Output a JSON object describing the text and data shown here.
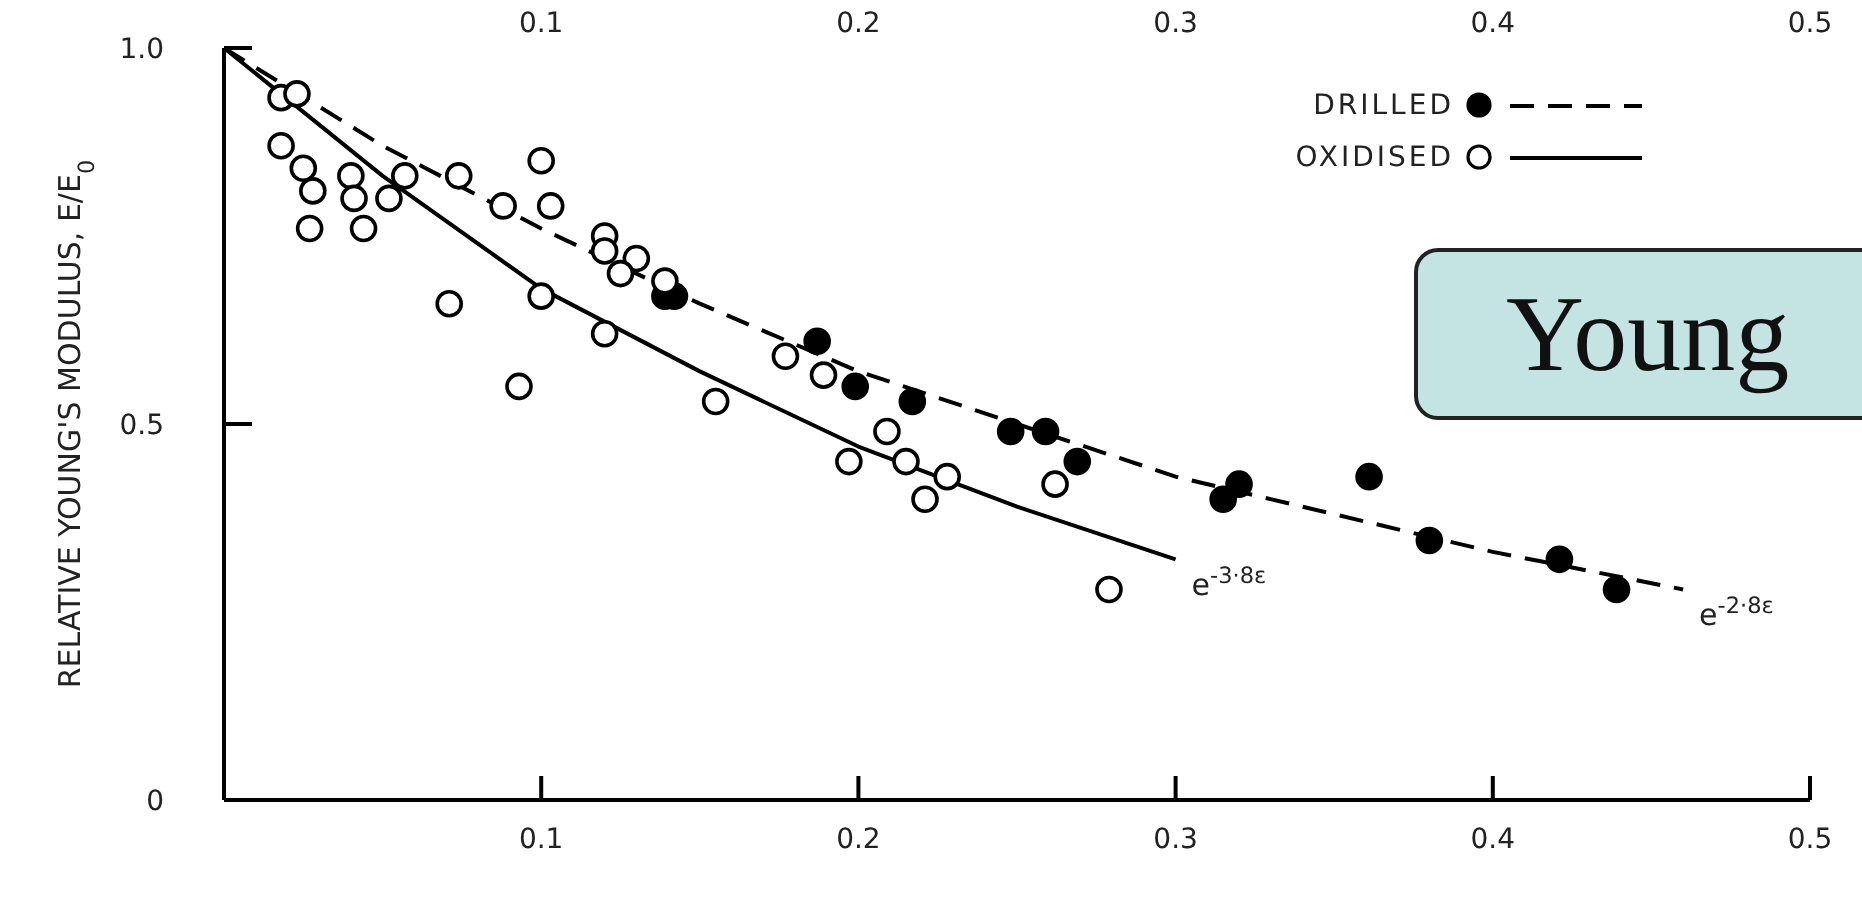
{
  "chart_data": {
    "type": "scatter",
    "ylabel": "RELATIVE YOUNG'S MODULUS, E/E$_{0}$",
    "xlim": [
      0,
      0.5
    ],
    "xticks": [
      0.1,
      0.2,
      0.3,
      0.4,
      0.5
    ],
    "x2lim": [
      0,
      0.5
    ],
    "x2ticks": [
      0.1,
      0.2,
      0.3,
      0.4,
      0.5
    ],
    "ylim": [
      0,
      1
    ],
    "yticks": [
      0,
      0.5,
      {
        "value": 1,
        "label": "1.0"
      }
    ],
    "grid": false,
    "legend": "top right",
    "marker": "circle",
    "series": [
      {
        "name": "DRILLED",
        "color": "#000000",
        "x": [
          0.139,
          0.142,
          0.187,
          0.199,
          0.217,
          0.248,
          0.259,
          0.269,
          0.315,
          0.32,
          0.361,
          0.38,
          0.421,
          0.439
        ],
        "values": [
          0.67,
          0.67,
          0.61,
          0.55,
          0.53,
          0.49,
          0.49,
          0.45,
          0.4,
          0.42,
          0.43,
          0.345,
          0.32,
          0.28
        ]
      },
      {
        "name": "OXIDISED",
        "color": "#ffffff",
        "x": [
          0.018,
          0.023,
          0.018,
          0.025,
          0.028,
          0.027,
          0.04,
          0.041,
          0.044,
          0.052,
          0.057,
          0.074,
          0.071,
          0.088,
          0.1,
          0.103,
          0.1,
          0.093,
          0.12,
          0.12,
          0.13,
          0.125,
          0.139,
          0.12,
          0.155,
          0.177,
          0.189,
          0.209,
          0.197,
          0.215,
          0.228,
          0.221,
          0.262,
          0.279
        ],
        "values": [
          0.934,
          0.939,
          0.87,
          0.84,
          0.81,
          0.76,
          0.83,
          0.8,
          0.76,
          0.8,
          0.83,
          0.83,
          0.66,
          0.79,
          0.85,
          0.79,
          0.67,
          0.55,
          0.75,
          0.73,
          0.72,
          0.7,
          0.69,
          0.62,
          0.53,
          0.59,
          0.565,
          0.49,
          0.45,
          0.45,
          0.43,
          0.4,
          0.42,
          0.28
        ]
      },
      {
        "type": "line",
        "color": "#000000",
        "line_style": "dashed",
        "marker": "none",
        "x": [
          0,
          0.05,
          0.1,
          0.15,
          0.2,
          0.25,
          0.3,
          0.35,
          0.4,
          0.46
        ],
        "values": [
          1,
          0.87,
          0.76,
          0.66,
          0.57,
          0.5,
          0.43,
          0.38,
          0.33,
          0.28
        ]
      },
      {
        "type": "line",
        "color": "#000000",
        "line_style": "solid",
        "marker": "none",
        "x": [
          0,
          0.05,
          0.1,
          0.15,
          0.2,
          0.25,
          0.3
        ],
        "values": [
          1,
          0.83,
          0.68,
          0.57,
          0.47,
          0.39,
          0.32
        ]
      }
    ],
    "annotations": [
      {
        "text": "e$^{-2·8ε}$",
        "x": 0.46,
        "y": 0.28
      },
      {
        "text": "e$^{-3·8ε}$",
        "x": 0.3,
        "y": 0.32
      },
      "Young"
    ]
  }
}
